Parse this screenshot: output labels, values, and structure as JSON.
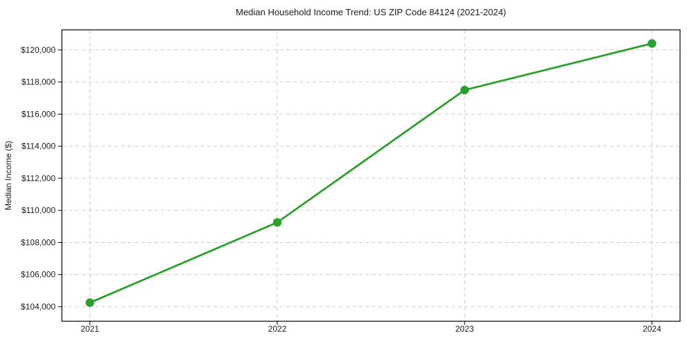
{
  "chart": {
    "title": "Median Household Income Trend: US ZIP Code 84124 (2021-2024)",
    "y_axis_title": "Median Income ($)"
  },
  "chart_data": {
    "type": "line",
    "title": "Median Household Income Trend: US ZIP Code 84124 (2021-2024)",
    "xlabel": "",
    "ylabel": "Median Income ($)",
    "x": [
      2021,
      2022,
      2023,
      2024
    ],
    "x_tick_labels": [
      "2021",
      "2022",
      "2023",
      "2024"
    ],
    "values": [
      104250,
      109250,
      117500,
      120400
    ],
    "yticks": [
      104000,
      106000,
      108000,
      110000,
      112000,
      114000,
      116000,
      118000,
      120000
    ],
    "ytick_labels": [
      "$104,000",
      "$106,000",
      "$108,000",
      "$110,000",
      "$112,000",
      "$114,000",
      "$116,000",
      "$118,000",
      "$120,000"
    ],
    "xlim": [
      2020.85,
      2024.15
    ],
    "ylim": [
      103090,
      121250
    ],
    "grid": true,
    "grid_style": "dashed",
    "grid_color": "#cccccc",
    "legend_position": "none",
    "line_color": "#2ca02c",
    "marker": "circle",
    "frame_color": "#000000"
  }
}
